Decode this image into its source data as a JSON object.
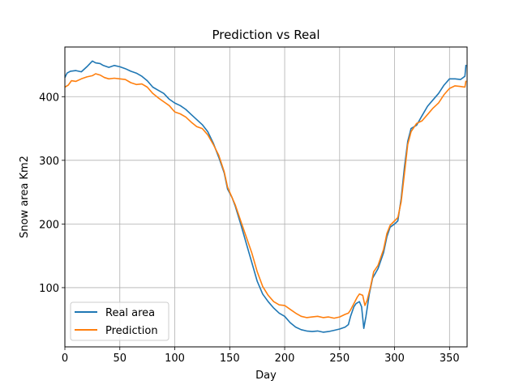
{
  "chart_data": {
    "type": "line",
    "title": "Prediction vs Real",
    "xlabel": "Day",
    "ylabel": "Snow area Km2",
    "xlim": [
      0,
      366
    ],
    "ylim": [
      7,
      478
    ],
    "xticks": [
      0,
      50,
      100,
      150,
      200,
      250,
      300,
      350
    ],
    "yticks": [
      100,
      200,
      300,
      400
    ],
    "grid": true,
    "legend_position": "lower-left",
    "series": [
      {
        "name": "Real area",
        "color": "#1f77b4",
        "points": [
          [
            0,
            430
          ],
          [
            2,
            437
          ],
          [
            5,
            440
          ],
          [
            10,
            441
          ],
          [
            15,
            439
          ],
          [
            20,
            447
          ],
          [
            25,
            456
          ],
          [
            28,
            453
          ],
          [
            32,
            452
          ],
          [
            35,
            449
          ],
          [
            40,
            446
          ],
          [
            45,
            449
          ],
          [
            50,
            447
          ],
          [
            55,
            444
          ],
          [
            60,
            440
          ],
          [
            65,
            437
          ],
          [
            70,
            432
          ],
          [
            75,
            425
          ],
          [
            80,
            415
          ],
          [
            85,
            410
          ],
          [
            90,
            405
          ],
          [
            95,
            396
          ],
          [
            100,
            390
          ],
          [
            105,
            386
          ],
          [
            110,
            380
          ],
          [
            115,
            372
          ],
          [
            120,
            364
          ],
          [
            125,
            356
          ],
          [
            130,
            345
          ],
          [
            135,
            327
          ],
          [
            140,
            305
          ],
          [
            145,
            280
          ],
          [
            148,
            255
          ],
          [
            152,
            242
          ],
          [
            155,
            228
          ],
          [
            160,
            200
          ],
          [
            165,
            170
          ],
          [
            170,
            140
          ],
          [
            175,
            110
          ],
          [
            180,
            90
          ],
          [
            185,
            78
          ],
          [
            190,
            68
          ],
          [
            195,
            60
          ],
          [
            200,
            55
          ],
          [
            205,
            45
          ],
          [
            210,
            38
          ],
          [
            215,
            34
          ],
          [
            220,
            32
          ],
          [
            225,
            31
          ],
          [
            230,
            32
          ],
          [
            235,
            30
          ],
          [
            240,
            31
          ],
          [
            245,
            33
          ],
          [
            250,
            35
          ],
          [
            255,
            38
          ],
          [
            258,
            42
          ],
          [
            260,
            55
          ],
          [
            263,
            70
          ],
          [
            265,
            75
          ],
          [
            268,
            78
          ],
          [
            270,
            70
          ],
          [
            272,
            36
          ],
          [
            274,
            55
          ],
          [
            277,
            90
          ],
          [
            280,
            115
          ],
          [
            285,
            130
          ],
          [
            290,
            155
          ],
          [
            293,
            180
          ],
          [
            296,
            195
          ],
          [
            300,
            200
          ],
          [
            303,
            205
          ],
          [
            306,
            240
          ],
          [
            309,
            290
          ],
          [
            312,
            330
          ],
          [
            315,
            350
          ],
          [
            320,
            355
          ],
          [
            325,
            370
          ],
          [
            330,
            385
          ],
          [
            335,
            395
          ],
          [
            340,
            405
          ],
          [
            345,
            418
          ],
          [
            350,
            428
          ],
          [
            355,
            428
          ],
          [
            360,
            427
          ],
          [
            364,
            432
          ],
          [
            365,
            450
          ]
        ]
      },
      {
        "name": "Prediction",
        "color": "#ff7f0e",
        "points": [
          [
            0,
            415
          ],
          [
            3,
            418
          ],
          [
            6,
            425
          ],
          [
            10,
            424
          ],
          [
            15,
            428
          ],
          [
            20,
            431
          ],
          [
            25,
            433
          ],
          [
            28,
            436
          ],
          [
            32,
            434
          ],
          [
            36,
            430
          ],
          [
            40,
            428
          ],
          [
            45,
            429
          ],
          [
            50,
            428
          ],
          [
            55,
            427
          ],
          [
            60,
            422
          ],
          [
            65,
            419
          ],
          [
            70,
            420
          ],
          [
            75,
            415
          ],
          [
            80,
            405
          ],
          [
            85,
            398
          ],
          [
            90,
            392
          ],
          [
            95,
            386
          ],
          [
            100,
            376
          ],
          [
            105,
            373
          ],
          [
            110,
            368
          ],
          [
            115,
            360
          ],
          [
            120,
            353
          ],
          [
            125,
            350
          ],
          [
            130,
            340
          ],
          [
            135,
            325
          ],
          [
            140,
            308
          ],
          [
            145,
            282
          ],
          [
            148,
            258
          ],
          [
            152,
            242
          ],
          [
            155,
            230
          ],
          [
            160,
            205
          ],
          [
            165,
            180
          ],
          [
            170,
            155
          ],
          [
            175,
            125
          ],
          [
            180,
            102
          ],
          [
            185,
            88
          ],
          [
            190,
            78
          ],
          [
            195,
            73
          ],
          [
            200,
            72
          ],
          [
            205,
            66
          ],
          [
            210,
            60
          ],
          [
            215,
            55
          ],
          [
            220,
            53
          ],
          [
            225,
            54
          ],
          [
            230,
            55
          ],
          [
            235,
            53
          ],
          [
            240,
            54
          ],
          [
            245,
            52
          ],
          [
            250,
            54
          ],
          [
            255,
            58
          ],
          [
            258,
            60
          ],
          [
            260,
            65
          ],
          [
            263,
            75
          ],
          [
            266,
            85
          ],
          [
            268,
            90
          ],
          [
            271,
            88
          ],
          [
            273,
            72
          ],
          [
            275,
            80
          ],
          [
            278,
            100
          ],
          [
            281,
            125
          ],
          [
            285,
            135
          ],
          [
            290,
            160
          ],
          [
            293,
            185
          ],
          [
            296,
            198
          ],
          [
            300,
            205
          ],
          [
            303,
            210
          ],
          [
            306,
            235
          ],
          [
            309,
            280
          ],
          [
            312,
            325
          ],
          [
            315,
            345
          ],
          [
            320,
            358
          ],
          [
            325,
            362
          ],
          [
            330,
            372
          ],
          [
            335,
            382
          ],
          [
            340,
            390
          ],
          [
            345,
            403
          ],
          [
            350,
            413
          ],
          [
            355,
            417
          ],
          [
            360,
            416
          ],
          [
            364,
            415
          ],
          [
            365,
            425
          ]
        ]
      }
    ]
  }
}
